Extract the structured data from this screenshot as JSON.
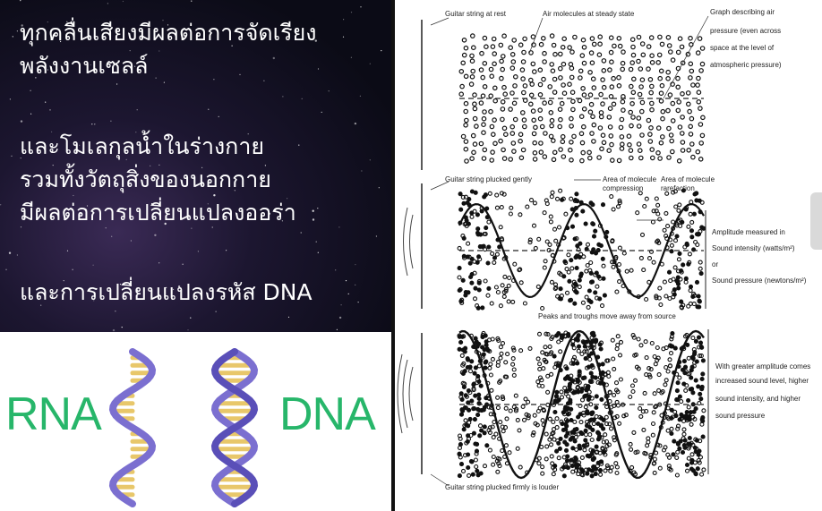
{
  "left": {
    "lines": [
      "ทุกคลื่นเสียงมีผลต่อการจัดเรียง",
      "พลังงานเซลล์",
      "และโมเลกุลน้ำในร่างกาย",
      "รวมทั้งวัตถุสิ่งของนอกกาย",
      "มีผลต่อการเปลี่ยนแปลงออร่า",
      "และการเปลี่ยนแปลงรหัส DNA"
    ],
    "rna_label": "RNA",
    "dna_label": "DNA"
  },
  "diagram": {
    "labels": {
      "guitar_rest": "Guitar string at rest",
      "air_steady": "Air molecules at steady state",
      "graph_desc_1": "Graph describing air",
      "graph_desc_2": "pressure (even across",
      "graph_desc_3": "space at the level of",
      "graph_desc_4": "atmospheric pressure)",
      "plucked_gently": "Guitar string plucked gently",
      "compression_1": "Area of molecule",
      "compression_2": "compression",
      "rarefaction_1": "Area of molecule",
      "rarefaction_2": "rarefaction",
      "amp_1": "Amplitude measured in",
      "amp_2": "Sound intensity (watts/m²)",
      "amp_3": "or",
      "amp_4": "Sound pressure (newtons/m²)",
      "peaks": "Peaks and troughs move away from source",
      "greater_1": "With greater amplitude comes",
      "greater_2": "increased sound level, higher",
      "greater_3": "sound intensity, and higher",
      "greater_4": "sound pressure",
      "plucked_firmly": "Guitar string plucked firmly is louder"
    }
  },
  "colors": {
    "text_white": "#ffffff",
    "label_green": "#27b66a",
    "helix_purple": "#7b6fd0",
    "base_yellow": "#e8c76a"
  }
}
